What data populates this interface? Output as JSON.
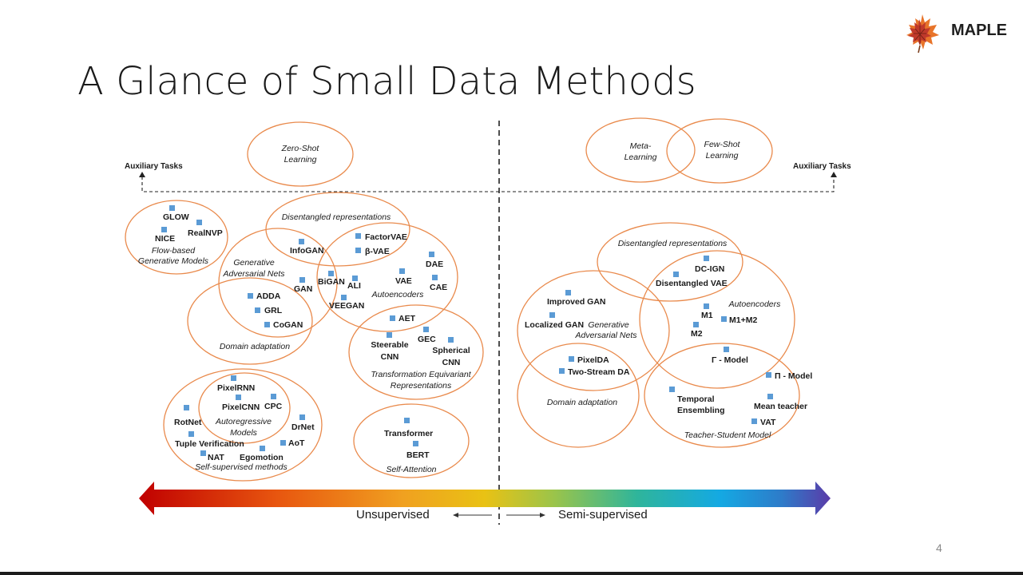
{
  "slide": {
    "title": "A Glance of Small Data Methods",
    "page_number": "4"
  },
  "logo": {
    "text": "MAPLE",
    "icon": "maple-leaf-icon"
  },
  "colors": {
    "ellipse": "#E98A4C",
    "marker": "#5B9BD5",
    "text": "#1a1a1a"
  },
  "axes": {
    "aux_left": "Auxiliary Tasks",
    "aux_right": "Auxiliary Tasks",
    "unsupervised": "Unsupervised",
    "semi_supervised": "Semi-supervised"
  },
  "groups": [
    {
      "label": "Zero-Shot Learning",
      "lines": [
        "Zero-Shot",
        "Learning"
      ]
    },
    {
      "label": "Meta-Learning",
      "lines": [
        "Meta-",
        "Learning"
      ]
    },
    {
      "label": "Few-Shot Learning",
      "lines": [
        "Few-Shot",
        "Learning"
      ]
    },
    {
      "label": "Flow-based Generative Models",
      "lines": [
        "Flow-based",
        "Generative Models"
      ]
    },
    {
      "label": "Disentangled representations",
      "lines": [
        "Disentangled representations"
      ]
    },
    {
      "label": "Generative Adversarial Nets",
      "lines": [
        "Generative",
        "Adversarial Nets"
      ]
    },
    {
      "label": "Autoencoders",
      "lines": [
        "Autoencoders"
      ]
    },
    {
      "label": "Domain adaptation",
      "lines": [
        "Domain adaptation"
      ]
    },
    {
      "label": "Transformation Equivariant Representations",
      "lines": [
        "Transformation Equivariant",
        "Representations"
      ]
    },
    {
      "label": "Autoregressive Models",
      "lines": [
        "Autoregressive",
        "Models"
      ]
    },
    {
      "label": "Self-supervised methods",
      "lines": [
        "Self-supervised methods"
      ]
    },
    {
      "label": "Self-Attention",
      "lines": [
        "Self-Attention"
      ]
    },
    {
      "label": "Disentangled representations",
      "lines": [
        "Disentangled representations"
      ]
    },
    {
      "label": "Generative Adversarial Nets",
      "lines": [
        "Generative",
        "Adversarial Nets"
      ]
    },
    {
      "label": "Autoencoders",
      "lines": [
        "Autoencoders"
      ]
    },
    {
      "label": "Domain adaptation",
      "lines": [
        "Domain adaptation"
      ]
    },
    {
      "label": "Teacher-Student Model",
      "lines": [
        "Teacher-Student Model"
      ]
    }
  ],
  "methods": [
    {
      "name": "GLOW"
    },
    {
      "name": "RealNVP"
    },
    {
      "name": "NICE"
    },
    {
      "name": "InfoGAN"
    },
    {
      "name": "FactorVAE"
    },
    {
      "name": "β-VAE"
    },
    {
      "name": "DAE"
    },
    {
      "name": "CAE"
    },
    {
      "name": "VAE"
    },
    {
      "name": "BiGAN"
    },
    {
      "name": "ALI"
    },
    {
      "name": "VEEGAN"
    },
    {
      "name": "GAN"
    },
    {
      "name": "ADDA"
    },
    {
      "name": "GRL"
    },
    {
      "name": "CoGAN"
    },
    {
      "name": "AET"
    },
    {
      "name": "GEC"
    },
    {
      "name": "Steerable CNN"
    },
    {
      "name": "Spherical CNN"
    },
    {
      "name": "PixelRNN"
    },
    {
      "name": "PixelCNN"
    },
    {
      "name": "CPC"
    },
    {
      "name": "RotNet"
    },
    {
      "name": "DrNet"
    },
    {
      "name": "Tuple Verification"
    },
    {
      "name": "NAT"
    },
    {
      "name": "Egomotion"
    },
    {
      "name": "AoT"
    },
    {
      "name": "Transformer"
    },
    {
      "name": "BERT"
    },
    {
      "name": "DC-IGN"
    },
    {
      "name": "Disentangled VAE"
    },
    {
      "name": "Improved GAN"
    },
    {
      "name": "Localized GAN"
    },
    {
      "name": "M1"
    },
    {
      "name": "M1+M2"
    },
    {
      "name": "M2"
    },
    {
      "name": "PixelDA"
    },
    {
      "name": "Two-Stream DA"
    },
    {
      "name": "Γ - Model"
    },
    {
      "name": "Π - Model"
    },
    {
      "name": "Temporal Ensembling"
    },
    {
      "name": "Mean teacher"
    },
    {
      "name": "VAT"
    }
  ]
}
